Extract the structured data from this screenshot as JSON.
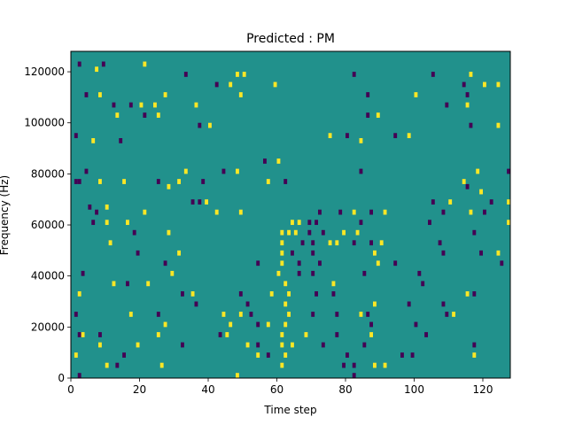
{
  "chart_data": {
    "type": "heatmap",
    "title": "Predicted : PM",
    "xlabel": "Time step",
    "ylabel": "Frequency (Hz)",
    "xlim": [
      0,
      128
    ],
    "ylim": [
      0,
      128000
    ],
    "xticks": [
      0,
      20,
      40,
      60,
      80,
      100,
      120
    ],
    "yticks": [
      0,
      20000,
      40000,
      60000,
      80000,
      100000,
      120000
    ],
    "xtick_labels": [
      "0",
      "20",
      "40",
      "60",
      "80",
      "100",
      "120"
    ],
    "ytick_labels": [
      "0",
      "20000",
      "40000",
      "60000",
      "80000",
      "100000",
      "120000"
    ],
    "grid": false,
    "colormap": "viridis",
    "value_levels": [
      -1,
      0,
      1
    ],
    "background_value": 0,
    "colors": {
      "low": "#440154",
      "mid": "#21918c",
      "high": "#fde725",
      "frame": "#000000"
    },
    "bin_height_hz": 2000,
    "cells": [
      {
        "t": 2,
        "f": 122000,
        "v": -1
      },
      {
        "t": 9,
        "f": 122000,
        "v": -1
      },
      {
        "t": 21,
        "f": 122000,
        "v": 1
      },
      {
        "t": 7,
        "f": 120000,
        "v": 1
      },
      {
        "t": 33,
        "f": 118000,
        "v": -1
      },
      {
        "t": 48,
        "f": 118000,
        "v": 1
      },
      {
        "t": 50,
        "f": 118000,
        "v": 1
      },
      {
        "t": 82,
        "f": 118000,
        "v": -1
      },
      {
        "t": 105,
        "f": 118000,
        "v": -1
      },
      {
        "t": 116,
        "f": 118000,
        "v": 1
      },
      {
        "t": 42,
        "f": 114000,
        "v": -1
      },
      {
        "t": 46,
        "f": 114000,
        "v": 1
      },
      {
        "t": 59,
        "f": 114000,
        "v": 1
      },
      {
        "t": 114,
        "f": 114000,
        "v": -1
      },
      {
        "t": 120,
        "f": 114000,
        "v": 1
      },
      {
        "t": 124,
        "f": 114000,
        "v": 1
      },
      {
        "t": 4,
        "f": 110000,
        "v": -1
      },
      {
        "t": 8,
        "f": 110000,
        "v": 1
      },
      {
        "t": 27,
        "f": 110000,
        "v": 1
      },
      {
        "t": 49,
        "f": 110000,
        "v": 1
      },
      {
        "t": 86,
        "f": 110000,
        "v": -1
      },
      {
        "t": 100,
        "f": 110000,
        "v": 1
      },
      {
        "t": 115,
        "f": 110000,
        "v": -1
      },
      {
        "t": 12,
        "f": 106000,
        "v": -1
      },
      {
        "t": 17,
        "f": 106000,
        "v": -1
      },
      {
        "t": 20,
        "f": 106000,
        "v": 1
      },
      {
        "t": 24,
        "f": 106000,
        "v": 1
      },
      {
        "t": 36,
        "f": 106000,
        "v": 1
      },
      {
        "t": 109,
        "f": 106000,
        "v": -1
      },
      {
        "t": 115,
        "f": 106000,
        "v": 1
      },
      {
        "t": 13,
        "f": 102000,
        "v": 1
      },
      {
        "t": 21,
        "f": 102000,
        "v": -1
      },
      {
        "t": 25,
        "f": 102000,
        "v": 1
      },
      {
        "t": 86,
        "f": 102000,
        "v": -1
      },
      {
        "t": 89,
        "f": 102000,
        "v": 1
      },
      {
        "t": 37,
        "f": 98000,
        "v": -1
      },
      {
        "t": 40,
        "f": 98000,
        "v": 1
      },
      {
        "t": 116,
        "f": 98000,
        "v": -1
      },
      {
        "t": 124,
        "f": 98000,
        "v": 1
      },
      {
        "t": 1,
        "f": 94000,
        "v": -1
      },
      {
        "t": 75,
        "f": 94000,
        "v": 1
      },
      {
        "t": 80,
        "f": 94000,
        "v": -1
      },
      {
        "t": 94,
        "f": 94000,
        "v": -1
      },
      {
        "t": 98,
        "f": 94000,
        "v": 1
      },
      {
        "t": 6,
        "f": 92000,
        "v": 1
      },
      {
        "t": 14,
        "f": 92000,
        "v": -1
      },
      {
        "t": 84,
        "f": 92000,
        "v": 1
      },
      {
        "t": 56,
        "f": 84000,
        "v": -1
      },
      {
        "t": 60,
        "f": 84000,
        "v": 1
      },
      {
        "t": 4,
        "f": 80000,
        "v": -1
      },
      {
        "t": 33,
        "f": 80000,
        "v": 1
      },
      {
        "t": 44,
        "f": 80000,
        "v": -1
      },
      {
        "t": 48,
        "f": 80000,
        "v": 1
      },
      {
        "t": 84,
        "f": 80000,
        "v": -1
      },
      {
        "t": 118,
        "f": 80000,
        "v": 1
      },
      {
        "t": 127,
        "f": 80000,
        "v": -1
      },
      {
        "t": 1,
        "f": 76000,
        "v": -1
      },
      {
        "t": 2,
        "f": 76000,
        "v": -1
      },
      {
        "t": 8,
        "f": 76000,
        "v": 1
      },
      {
        "t": 15,
        "f": 76000,
        "v": 1
      },
      {
        "t": 25,
        "f": 76000,
        "v": -1
      },
      {
        "t": 31,
        "f": 76000,
        "v": 1
      },
      {
        "t": 38,
        "f": 76000,
        "v": -1
      },
      {
        "t": 57,
        "f": 76000,
        "v": 1
      },
      {
        "t": 62,
        "f": 76000,
        "v": -1
      },
      {
        "t": 114,
        "f": 76000,
        "v": 1
      },
      {
        "t": 28,
        "f": 74000,
        "v": 1
      },
      {
        "t": 115,
        "f": 74000,
        "v": -1
      },
      {
        "t": 119,
        "f": 72000,
        "v": 1
      },
      {
        "t": 35,
        "f": 68000,
        "v": -1
      },
      {
        "t": 37,
        "f": 68000,
        "v": -1
      },
      {
        "t": 39,
        "f": 68000,
        "v": 1
      },
      {
        "t": 105,
        "f": 68000,
        "v": -1
      },
      {
        "t": 110,
        "f": 68000,
        "v": 1
      },
      {
        "t": 122,
        "f": 68000,
        "v": -1
      },
      {
        "t": 127,
        "f": 68000,
        "v": 1
      },
      {
        "t": 5,
        "f": 66000,
        "v": -1
      },
      {
        "t": 10,
        "f": 66000,
        "v": 1
      },
      {
        "t": 7,
        "f": 64000,
        "v": -1
      },
      {
        "t": 21,
        "f": 64000,
        "v": 1
      },
      {
        "t": 42,
        "f": 64000,
        "v": 1
      },
      {
        "t": 49,
        "f": 64000,
        "v": 1
      },
      {
        "t": 72,
        "f": 64000,
        "v": -1
      },
      {
        "t": 78,
        "f": 64000,
        "v": -1
      },
      {
        "t": 82,
        "f": 64000,
        "v": 1
      },
      {
        "t": 87,
        "f": 64000,
        "v": -1
      },
      {
        "t": 91,
        "f": 64000,
        "v": 1
      },
      {
        "t": 108,
        "f": 64000,
        "v": -1
      },
      {
        "t": 116,
        "f": 64000,
        "v": 1
      },
      {
        "t": 120,
        "f": 64000,
        "v": -1
      },
      {
        "t": 6,
        "f": 60000,
        "v": -1
      },
      {
        "t": 10,
        "f": 60000,
        "v": 1
      },
      {
        "t": 16,
        "f": 60000,
        "v": 1
      },
      {
        "t": 64,
        "f": 60000,
        "v": 1
      },
      {
        "t": 66,
        "f": 60000,
        "v": 1
      },
      {
        "t": 69,
        "f": 60000,
        "v": -1
      },
      {
        "t": 71,
        "f": 60000,
        "v": -1
      },
      {
        "t": 84,
        "f": 60000,
        "v": -1
      },
      {
        "t": 104,
        "f": 60000,
        "v": -1
      },
      {
        "t": 127,
        "f": 60000,
        "v": 1
      },
      {
        "t": 18,
        "f": 56000,
        "v": -1
      },
      {
        "t": 28,
        "f": 56000,
        "v": 1
      },
      {
        "t": 61,
        "f": 56000,
        "v": 1
      },
      {
        "t": 63,
        "f": 56000,
        "v": 1
      },
      {
        "t": 65,
        "f": 56000,
        "v": 1
      },
      {
        "t": 69,
        "f": 56000,
        "v": -1
      },
      {
        "t": 73,
        "f": 56000,
        "v": -1
      },
      {
        "t": 79,
        "f": 56000,
        "v": 1
      },
      {
        "t": 83,
        "f": 56000,
        "v": 1
      },
      {
        "t": 117,
        "f": 56000,
        "v": -1
      },
      {
        "t": 11,
        "f": 52000,
        "v": 1
      },
      {
        "t": 61,
        "f": 52000,
        "v": 1
      },
      {
        "t": 67,
        "f": 52000,
        "v": -1
      },
      {
        "t": 70,
        "f": 52000,
        "v": -1
      },
      {
        "t": 75,
        "f": 52000,
        "v": 1
      },
      {
        "t": 77,
        "f": 52000,
        "v": 1
      },
      {
        "t": 82,
        "f": 52000,
        "v": -1
      },
      {
        "t": 87,
        "f": 52000,
        "v": -1
      },
      {
        "t": 90,
        "f": 52000,
        "v": 1
      },
      {
        "t": 107,
        "f": 52000,
        "v": -1
      },
      {
        "t": 19,
        "f": 48000,
        "v": -1
      },
      {
        "t": 31,
        "f": 48000,
        "v": 1
      },
      {
        "t": 61,
        "f": 48000,
        "v": 1
      },
      {
        "t": 64,
        "f": 48000,
        "v": -1
      },
      {
        "t": 70,
        "f": 48000,
        "v": -1
      },
      {
        "t": 88,
        "f": 48000,
        "v": 1
      },
      {
        "t": 108,
        "f": 48000,
        "v": -1
      },
      {
        "t": 119,
        "f": 48000,
        "v": -1
      },
      {
        "t": 124,
        "f": 48000,
        "v": 1
      },
      {
        "t": 27,
        "f": 44000,
        "v": -1
      },
      {
        "t": 54,
        "f": 44000,
        "v": -1
      },
      {
        "t": 61,
        "f": 44000,
        "v": 1
      },
      {
        "t": 66,
        "f": 44000,
        "v": -1
      },
      {
        "t": 72,
        "f": 44000,
        "v": -1
      },
      {
        "t": 89,
        "f": 44000,
        "v": 1
      },
      {
        "t": 94,
        "f": 44000,
        "v": -1
      },
      {
        "t": 125,
        "f": 44000,
        "v": -1
      },
      {
        "t": 3,
        "f": 40000,
        "v": -1
      },
      {
        "t": 29,
        "f": 40000,
        "v": 1
      },
      {
        "t": 60,
        "f": 40000,
        "v": 1
      },
      {
        "t": 66,
        "f": 40000,
        "v": -1
      },
      {
        "t": 70,
        "f": 40000,
        "v": -1
      },
      {
        "t": 85,
        "f": 40000,
        "v": -1
      },
      {
        "t": 101,
        "f": 40000,
        "v": -1
      },
      {
        "t": 12,
        "f": 36000,
        "v": 1
      },
      {
        "t": 16,
        "f": 36000,
        "v": -1
      },
      {
        "t": 22,
        "f": 36000,
        "v": 1
      },
      {
        "t": 62,
        "f": 36000,
        "v": 1
      },
      {
        "t": 76,
        "f": 36000,
        "v": 1
      },
      {
        "t": 102,
        "f": 36000,
        "v": -1
      },
      {
        "t": 2,
        "f": 32000,
        "v": 1
      },
      {
        "t": 32,
        "f": 32000,
        "v": -1
      },
      {
        "t": 35,
        "f": 32000,
        "v": 1
      },
      {
        "t": 49,
        "f": 32000,
        "v": -1
      },
      {
        "t": 58,
        "f": 32000,
        "v": 1
      },
      {
        "t": 63,
        "f": 32000,
        "v": 1
      },
      {
        "t": 71,
        "f": 32000,
        "v": -1
      },
      {
        "t": 76,
        "f": 32000,
        "v": -1
      },
      {
        "t": 115,
        "f": 32000,
        "v": 1
      },
      {
        "t": 117,
        "f": 32000,
        "v": -1
      },
      {
        "t": 36,
        "f": 28000,
        "v": -1
      },
      {
        "t": 51,
        "f": 28000,
        "v": -1
      },
      {
        "t": 62,
        "f": 28000,
        "v": 1
      },
      {
        "t": 88,
        "f": 28000,
        "v": 1
      },
      {
        "t": 98,
        "f": 28000,
        "v": -1
      },
      {
        "t": 108,
        "f": 28000,
        "v": -1
      },
      {
        "t": 1,
        "f": 24000,
        "v": -1
      },
      {
        "t": 17,
        "f": 24000,
        "v": 1
      },
      {
        "t": 25,
        "f": 24000,
        "v": -1
      },
      {
        "t": 44,
        "f": 24000,
        "v": 1
      },
      {
        "t": 49,
        "f": 24000,
        "v": 1
      },
      {
        "t": 52,
        "f": 24000,
        "v": -1
      },
      {
        "t": 63,
        "f": 24000,
        "v": 1
      },
      {
        "t": 70,
        "f": 24000,
        "v": -1
      },
      {
        "t": 77,
        "f": 24000,
        "v": -1
      },
      {
        "t": 84,
        "f": 24000,
        "v": 1
      },
      {
        "t": 86,
        "f": 24000,
        "v": -1
      },
      {
        "t": 109,
        "f": 24000,
        "v": -1
      },
      {
        "t": 111,
        "f": 24000,
        "v": 1
      },
      {
        "t": 27,
        "f": 20000,
        "v": 1
      },
      {
        "t": 46,
        "f": 20000,
        "v": 1
      },
      {
        "t": 54,
        "f": 20000,
        "v": -1
      },
      {
        "t": 57,
        "f": 20000,
        "v": 1
      },
      {
        "t": 62,
        "f": 20000,
        "v": 1
      },
      {
        "t": 87,
        "f": 20000,
        "v": -1
      },
      {
        "t": 100,
        "f": 20000,
        "v": -1
      },
      {
        "t": 2,
        "f": 16000,
        "v": -1
      },
      {
        "t": 3,
        "f": 16000,
        "v": 1
      },
      {
        "t": 8,
        "f": 16000,
        "v": -1
      },
      {
        "t": 25,
        "f": 16000,
        "v": 1
      },
      {
        "t": 43,
        "f": 16000,
        "v": -1
      },
      {
        "t": 45,
        "f": 16000,
        "v": 1
      },
      {
        "t": 61,
        "f": 16000,
        "v": 1
      },
      {
        "t": 68,
        "f": 16000,
        "v": 1
      },
      {
        "t": 77,
        "f": 16000,
        "v": -1
      },
      {
        "t": 87,
        "f": 16000,
        "v": 1
      },
      {
        "t": 103,
        "f": 16000,
        "v": -1
      },
      {
        "t": 8,
        "f": 12000,
        "v": 1
      },
      {
        "t": 19,
        "f": 12000,
        "v": 1
      },
      {
        "t": 32,
        "f": 12000,
        "v": -1
      },
      {
        "t": 51,
        "f": 12000,
        "v": 1
      },
      {
        "t": 54,
        "f": 12000,
        "v": -1
      },
      {
        "t": 61,
        "f": 12000,
        "v": 1
      },
      {
        "t": 64,
        "f": 12000,
        "v": 1
      },
      {
        "t": 73,
        "f": 12000,
        "v": -1
      },
      {
        "t": 85,
        "f": 12000,
        "v": -1
      },
      {
        "t": 117,
        "f": 12000,
        "v": -1
      },
      {
        "t": 1,
        "f": 8000,
        "v": 1
      },
      {
        "t": 15,
        "f": 8000,
        "v": -1
      },
      {
        "t": 54,
        "f": 8000,
        "v": 1
      },
      {
        "t": 57,
        "f": 8000,
        "v": -1
      },
      {
        "t": 62,
        "f": 8000,
        "v": 1
      },
      {
        "t": 80,
        "f": 8000,
        "v": -1
      },
      {
        "t": 96,
        "f": 8000,
        "v": -1
      },
      {
        "t": 99,
        "f": 8000,
        "v": -1
      },
      {
        "t": 117,
        "f": 8000,
        "v": 1
      },
      {
        "t": 10,
        "f": 4000,
        "v": 1
      },
      {
        "t": 13,
        "f": 4000,
        "v": -1
      },
      {
        "t": 26,
        "f": 4000,
        "v": 1
      },
      {
        "t": 61,
        "f": 4000,
        "v": 1
      },
      {
        "t": 79,
        "f": 4000,
        "v": -1
      },
      {
        "t": 82,
        "f": 4000,
        "v": -1
      },
      {
        "t": 88,
        "f": 4000,
        "v": 1
      },
      {
        "t": 91,
        "f": 4000,
        "v": 1
      },
      {
        "t": 2,
        "f": 0,
        "v": -1
      },
      {
        "t": 48,
        "f": 0,
        "v": 1
      },
      {
        "t": 82,
        "f": 0,
        "v": -1
      }
    ]
  }
}
